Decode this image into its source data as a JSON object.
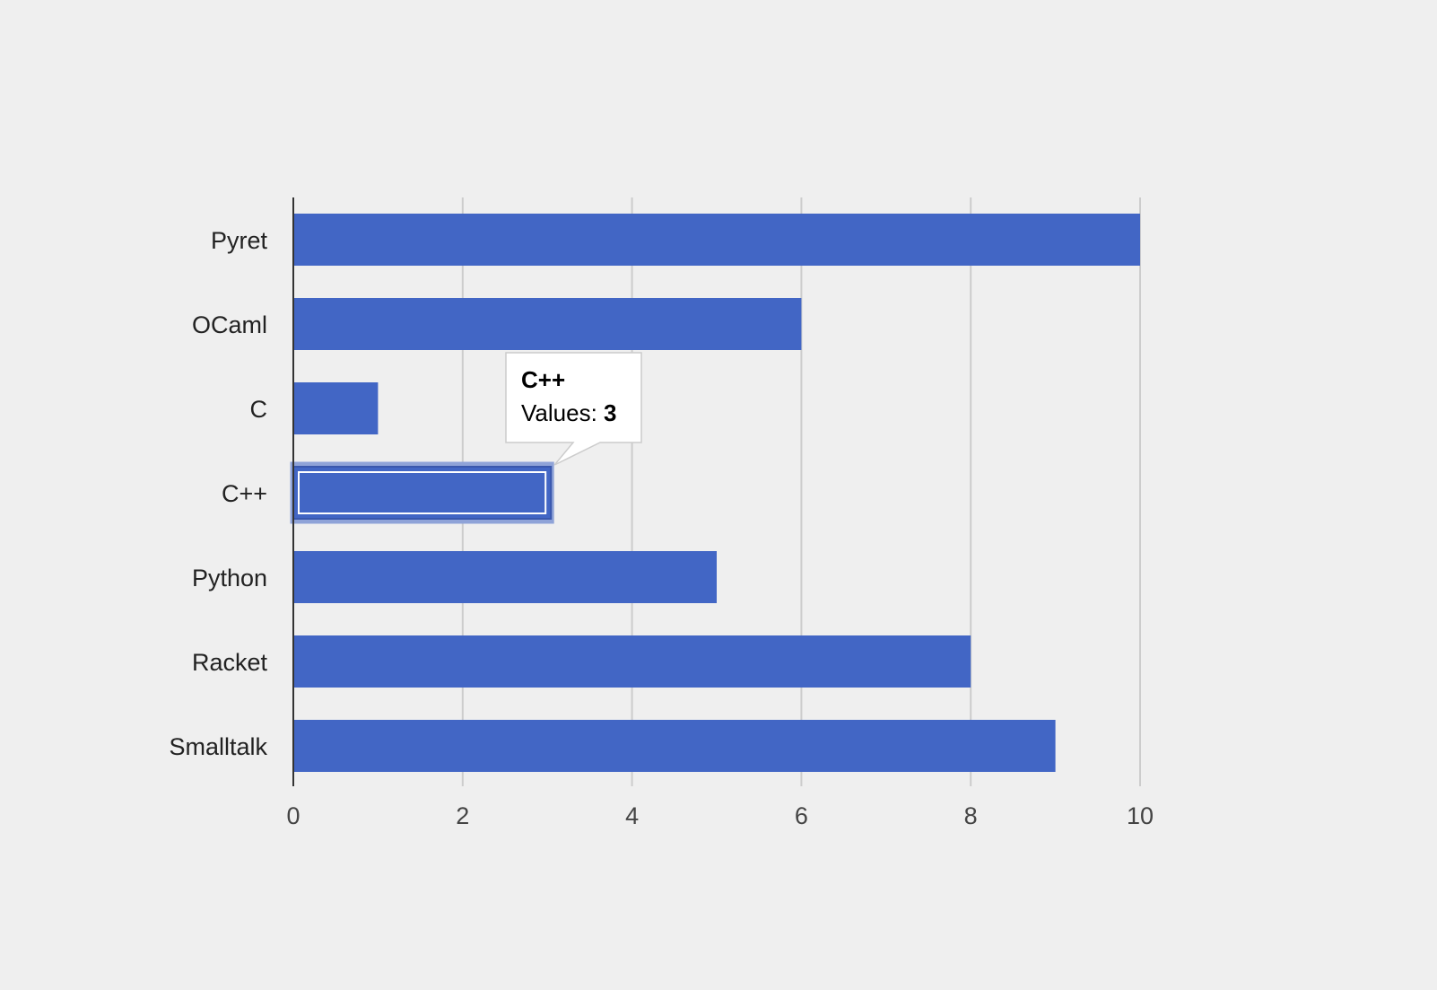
{
  "chart_data": {
    "type": "bar",
    "orientation": "horizontal",
    "categories": [
      "Pyret",
      "OCaml",
      "C",
      "C++",
      "Python",
      "Racket",
      "Smalltalk"
    ],
    "series": [
      {
        "values": [
          10,
          6,
          1,
          3,
          5,
          8,
          9
        ],
        "color": "#4266c5"
      }
    ],
    "xlim": [
      0,
      10
    ],
    "xticks": [
      0,
      2,
      4,
      6,
      8,
      10
    ],
    "grid": true,
    "legend": "none",
    "title": "",
    "xlabel": "",
    "ylabel": ""
  },
  "tooltip": {
    "category": "C++",
    "label": "Values: ",
    "value": "3"
  },
  "colors": {
    "background": "#efefef",
    "bar": "#4266c5",
    "grid": "#cccccc",
    "axis": "#333333"
  }
}
